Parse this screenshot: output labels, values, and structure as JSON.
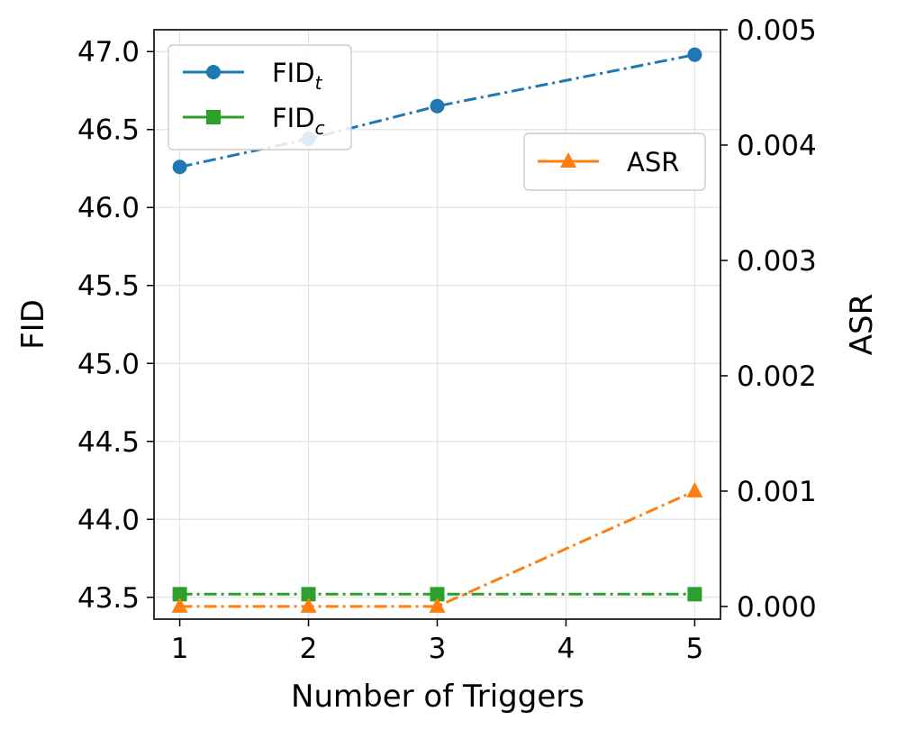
{
  "chart_data": {
    "type": "line",
    "x": [
      1,
      2,
      3,
      5
    ],
    "xticks": [
      "1",
      "2",
      "3",
      "4",
      "5"
    ],
    "xlabel": "Number of Triggers",
    "ylabel_left": "FID",
    "ylabel_right": "ASR",
    "ylim_left": [
      43.36,
      47.14
    ],
    "ylim_right": [
      -0.00011,
      0.005
    ],
    "yticks_left": [
      "43.5",
      "44.0",
      "44.5",
      "45.0",
      "45.5",
      "46.0",
      "46.5",
      "47.0"
    ],
    "yticks_right": [
      "0.000",
      "0.001",
      "0.002",
      "0.003",
      "0.004",
      "0.005"
    ],
    "grid": true,
    "series": [
      {
        "name": "FID",
        "sub": "t",
        "axis": "left",
        "color": "#1f77b4",
        "marker": "circle",
        "values": [
          46.26,
          46.44,
          46.65,
          46.98
        ]
      },
      {
        "name": "FID",
        "sub": "c",
        "axis": "left",
        "color": "#2ca02c",
        "marker": "square",
        "values": [
          43.52,
          43.52,
          43.52,
          43.52
        ]
      },
      {
        "name": "ASR",
        "sub": "",
        "axis": "right",
        "color": "#ff7f0e",
        "marker": "triangle",
        "values": [
          0.0,
          0.0,
          0.0,
          0.001
        ]
      }
    ],
    "legend_left_position": "upper-left",
    "legend_right_position": "upper-right"
  }
}
